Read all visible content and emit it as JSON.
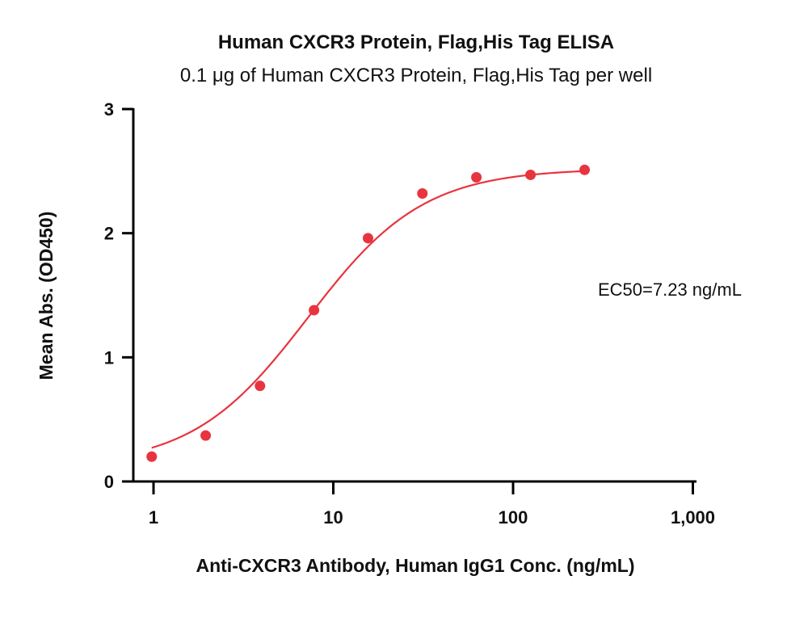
{
  "chart_data": {
    "type": "scatter",
    "title": "Human CXCR3 Protein, Flag,His Tag ELISA",
    "subtitle": "0.1 μg of Human CXCR3 Protein, Flag,His Tag per well",
    "xlabel": "Anti-CXCR3 Antibody, Human IgG1 Conc. (ng/mL)",
    "ylabel": "Mean Abs. (OD450)",
    "xscale": "log",
    "xlim": [
      1,
      1000
    ],
    "ylim": [
      0,
      3
    ],
    "xticks": [
      1,
      10,
      100,
      1000
    ],
    "xtick_labels": [
      "1",
      "10",
      "100",
      "1,000"
    ],
    "yticks": [
      0,
      1,
      2,
      3
    ],
    "ytick_labels": [
      "0",
      "1",
      "2",
      "3"
    ],
    "grid": false,
    "series": [
      {
        "x": [
          0.977,
          1.95,
          3.91,
          7.81,
          15.6,
          31.3,
          62.5,
          125,
          250
        ],
        "y": [
          0.2,
          0.37,
          0.77,
          1.38,
          1.96,
          2.32,
          2.45,
          2.47,
          2.51
        ],
        "color": "#e8343f",
        "fit": "4PL"
      }
    ],
    "annotation": "EC50=7.23 ng/mL"
  }
}
